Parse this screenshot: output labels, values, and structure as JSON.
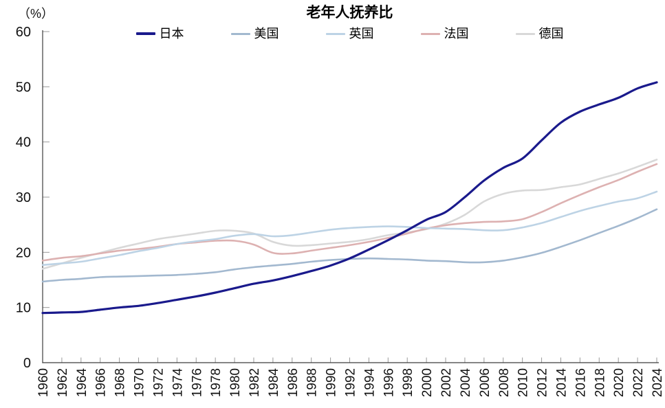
{
  "title": "老年人抚养比",
  "y_axis_unit": "（%）",
  "chart_data": {
    "type": "line",
    "title": "老年人抚养比",
    "ylabel_unit": "（%）",
    "grid": false,
    "legend_position": "top",
    "ylim": [
      0,
      60
    ],
    "yticks": [
      0,
      10,
      20,
      30,
      40,
      50,
      60
    ],
    "x": [
      1960,
      1962,
      1964,
      1966,
      1968,
      1970,
      1972,
      1974,
      1976,
      1978,
      1980,
      1982,
      1984,
      1986,
      1988,
      1990,
      1992,
      1994,
      1996,
      1998,
      2000,
      2002,
      2004,
      2006,
      2008,
      2010,
      2012,
      2014,
      2016,
      2018,
      2020,
      2022,
      2024
    ],
    "series": [
      {
        "name": "日本",
        "color": "#1a1a8c",
        "width": 3.2,
        "values": [
          9.0,
          9.1,
          9.2,
          9.6,
          10.0,
          10.3,
          10.8,
          11.4,
          12.0,
          12.7,
          13.5,
          14.3,
          14.9,
          15.7,
          16.6,
          17.6,
          18.9,
          20.5,
          22.2,
          24.0,
          25.9,
          27.3,
          30.0,
          33.0,
          35.3,
          37.0,
          40.3,
          43.5,
          45.5,
          46.8,
          48.0,
          49.7,
          50.8
        ]
      },
      {
        "name": "美国",
        "color": "#a2b8cf",
        "width": 2.6,
        "values": [
          14.7,
          15.0,
          15.2,
          15.5,
          15.6,
          15.7,
          15.8,
          15.9,
          16.1,
          16.4,
          16.9,
          17.3,
          17.6,
          17.9,
          18.3,
          18.6,
          18.8,
          18.9,
          18.8,
          18.7,
          18.5,
          18.4,
          18.2,
          18.2,
          18.5,
          19.1,
          19.9,
          21.0,
          22.2,
          23.5,
          24.8,
          26.2,
          27.8
        ]
      },
      {
        "name": "英国",
        "color": "#bdd3e5",
        "width": 2.6,
        "values": [
          17.7,
          18.0,
          18.3,
          18.9,
          19.5,
          20.2,
          20.8,
          21.5,
          22.0,
          22.4,
          23.0,
          23.3,
          22.9,
          23.1,
          23.6,
          24.1,
          24.4,
          24.6,
          24.7,
          24.6,
          24.4,
          24.3,
          24.2,
          24.0,
          24.0,
          24.5,
          25.3,
          26.4,
          27.5,
          28.4,
          29.2,
          29.8,
          31.0
        ]
      },
      {
        "name": "法国",
        "color": "#ddb1b1",
        "width": 2.6,
        "values": [
          18.5,
          19.0,
          19.3,
          19.8,
          20.3,
          20.6,
          21.0,
          21.5,
          21.8,
          22.1,
          22.1,
          21.4,
          19.9,
          19.8,
          20.3,
          20.8,
          21.3,
          21.9,
          22.6,
          23.4,
          24.3,
          24.9,
          25.3,
          25.5,
          25.6,
          26.0,
          27.3,
          28.9,
          30.4,
          31.8,
          33.1,
          34.6,
          36.0
        ]
      },
      {
        "name": "德国",
        "color": "#d8d8d8",
        "width": 2.6,
        "values": [
          17.0,
          18.0,
          19.0,
          19.9,
          20.8,
          21.6,
          22.4,
          22.9,
          23.4,
          23.9,
          23.9,
          23.4,
          21.9,
          21.2,
          21.3,
          21.6,
          21.9,
          22.4,
          23.1,
          23.6,
          24.2,
          25.2,
          26.8,
          29.2,
          30.6,
          31.2,
          31.3,
          31.8,
          32.3,
          33.3,
          34.3,
          35.5,
          36.8
        ]
      }
    ]
  },
  "axis_colors": {
    "axis_line": "#3c3c3c",
    "tick_mark": "#999999"
  }
}
